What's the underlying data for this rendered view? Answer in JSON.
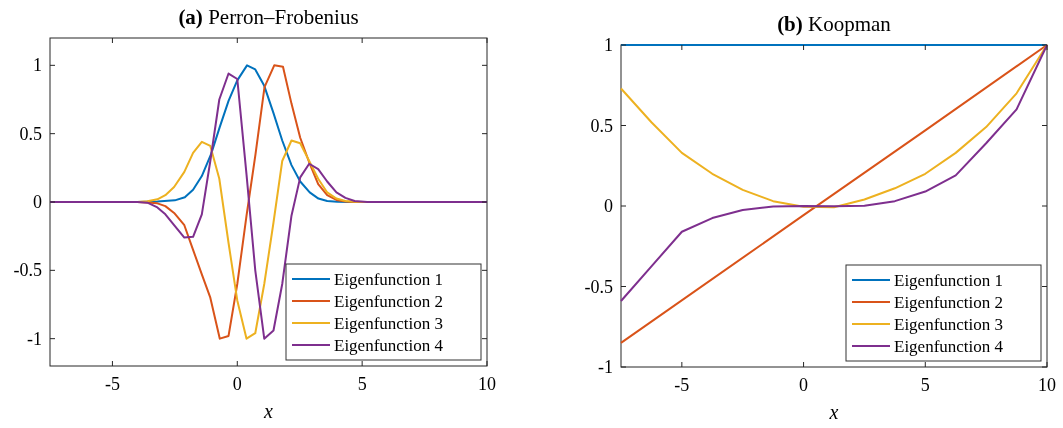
{
  "chart_data": [
    {
      "type": "line",
      "title": "(a) Perron–Frobenius",
      "xlabel": "x",
      "xlim": [
        -7.5,
        10
      ],
      "ylim": [
        -1.2,
        1.2
      ],
      "xticks": [
        -5,
        0,
        5,
        10
      ],
      "yticks": [
        -1,
        -0.5,
        0,
        0.5,
        1
      ],
      "grid": false,
      "legend": "bottom right",
      "marker": "none",
      "line_style": "solid",
      "series": [
        {
          "name": "Eigenfunction 1",
          "color": "#0072bd",
          "x": [
            -7.5,
            -4,
            -3.2,
            -2.5,
            -2.1,
            -1.77,
            -1.42,
            -1.05,
            -0.7,
            -0.35,
            0,
            0.39,
            0.72,
            1.08,
            1.45,
            1.8,
            2.17,
            2.52,
            2.9,
            3.25,
            3.6,
            4,
            4.5,
            10
          ],
          "values": [
            0,
            0,
            0.003,
            0.012,
            0.035,
            0.09,
            0.19,
            0.35,
            0.55,
            0.74,
            0.89,
            1,
            0.97,
            0.85,
            0.65,
            0.45,
            0.27,
            0.15,
            0.07,
            0.025,
            0.007,
            0.001,
            0,
            0
          ]
        },
        {
          "name": "Eigenfunction 2",
          "color": "#d95319",
          "x": [
            -7.5,
            -4,
            -3.6,
            -3.2,
            -2.88,
            -2.53,
            -2.12,
            -1.77,
            -1.42,
            -1.08,
            -0.7,
            -0.35,
            0,
            0.37,
            0.73,
            1.09,
            1.48,
            1.83,
            2.17,
            2.52,
            2.9,
            3.24,
            3.6,
            3.97,
            4.33,
            4.8,
            10
          ],
          "values": [
            0,
            0,
            -0.003,
            -0.01,
            -0.03,
            -0.08,
            -0.17,
            -0.35,
            -0.53,
            -0.7,
            -1,
            -0.98,
            -0.6,
            -0.1,
            0.35,
            0.84,
            1,
            0.99,
            0.72,
            0.47,
            0.28,
            0.13,
            0.05,
            0.015,
            0.003,
            0,
            0
          ]
        },
        {
          "name": "Eigenfunction 3",
          "color": "#edb120",
          "x": [
            -7.5,
            -4,
            -3.6,
            -3.2,
            -2.88,
            -2.53,
            -2.12,
            -1.77,
            -1.42,
            -1.08,
            -0.72,
            -0.35,
            0,
            0.37,
            0.72,
            1.08,
            1.45,
            1.8,
            2.17,
            2.52,
            2.88,
            3.24,
            3.6,
            3.97,
            4.33,
            4.7,
            5.2,
            10
          ],
          "values": [
            0,
            0,
            0.005,
            0.02,
            0.05,
            0.11,
            0.22,
            0.36,
            0.44,
            0.41,
            0.17,
            -0.3,
            -0.72,
            -1,
            -0.96,
            -0.6,
            -0.15,
            0.3,
            0.45,
            0.43,
            0.3,
            0.17,
            0.07,
            0.025,
            0.008,
            0.001,
            0,
            0
          ]
        },
        {
          "name": "Eigenfunction 4",
          "color": "#7e2f8e",
          "x": [
            -7.5,
            -4,
            -3.6,
            -3.2,
            -2.88,
            -2.53,
            -2.12,
            -1.77,
            -1.42,
            -1.08,
            -0.72,
            -0.35,
            0,
            0.37,
            0.72,
            1.08,
            1.45,
            1.8,
            2.17,
            2.52,
            2.88,
            3.24,
            3.6,
            3.97,
            4.33,
            4.7,
            5.2,
            10
          ],
          "values": [
            0,
            0,
            -0.005,
            -0.04,
            -0.09,
            -0.17,
            -0.26,
            -0.255,
            -0.09,
            0.3,
            0.75,
            0.94,
            0.9,
            0.2,
            -0.5,
            -1,
            -0.94,
            -0.6,
            -0.1,
            0.18,
            0.28,
            0.24,
            0.15,
            0.07,
            0.03,
            0.007,
            0,
            0
          ]
        }
      ]
    },
    {
      "type": "line",
      "title": "(b) Koopman",
      "xlabel": "x",
      "xlim": [
        -7.5,
        10
      ],
      "ylim": [
        -1,
        1
      ],
      "xticks": [
        -5,
        0,
        5,
        10
      ],
      "yticks": [
        -1,
        -0.5,
        0,
        0.5,
        1
      ],
      "grid": false,
      "legend": "bottom right",
      "marker": "none",
      "line_style": "solid",
      "series": [
        {
          "name": "Eigenfunction 1",
          "color": "#0072bd",
          "x": [
            -7.5,
            10
          ],
          "values": [
            1,
            1
          ]
        },
        {
          "name": "Eigenfunction 2",
          "color": "#d95319",
          "x": [
            -7.5,
            0,
            5,
            10
          ],
          "values": [
            -0.85,
            -0.057,
            0.47,
            1
          ]
        },
        {
          "name": "Eigenfunction 3",
          "color": "#edb120",
          "x": [
            -7.5,
            -6.25,
            -5,
            -3.75,
            -2.5,
            -1.25,
            0,
            1.25,
            2.5,
            3.75,
            5,
            6.25,
            7.5,
            8.75,
            10
          ],
          "values": [
            0.73,
            0.52,
            0.33,
            0.2,
            0.1,
            0.03,
            -0.005,
            -0.008,
            0.04,
            0.11,
            0.2,
            0.33,
            0.49,
            0.7,
            1
          ]
        },
        {
          "name": "Eigenfunction 4",
          "color": "#7e2f8e",
          "x": [
            -7.5,
            -6.25,
            -5,
            -3.75,
            -2.5,
            -1.25,
            0,
            1.25,
            2.5,
            3.75,
            5,
            6.25,
            7.5,
            8.75,
            10
          ],
          "values": [
            -0.59,
            -0.375,
            -0.16,
            -0.075,
            -0.025,
            -0.003,
            0,
            -0.002,
            0.002,
            0.03,
            0.09,
            0.19,
            0.39,
            0.6,
            1
          ]
        }
      ]
    }
  ]
}
